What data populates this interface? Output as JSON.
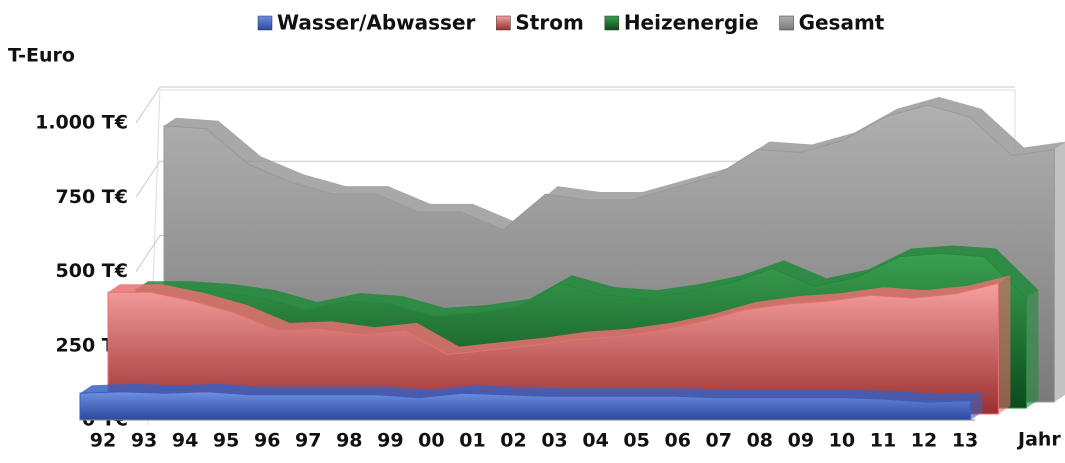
{
  "chart_data": {
    "type": "area3d",
    "y_label": "T-Euro",
    "x_label": "Jahr",
    "categories": [
      "92",
      "93",
      "94",
      "95",
      "96",
      "97",
      "98",
      "99",
      "00",
      "01",
      "02",
      "03",
      "04",
      "05",
      "06",
      "07",
      "08",
      "09",
      "10",
      "11",
      "12",
      "13"
    ],
    "series": [
      {
        "name": "Wasser/Abwasser",
        "color": "#3a5fc0",
        "values": [
          90,
          95,
          90,
          95,
          85,
          85,
          85,
          85,
          75,
          90,
          85,
          80,
          80,
          80,
          80,
          75,
          75,
          75,
          75,
          70,
          60,
          65
        ]
      },
      {
        "name": "Strom",
        "color": "#e87070",
        "values": [
          410,
          410,
          380,
          340,
          280,
          285,
          265,
          280,
          200,
          215,
          230,
          250,
          260,
          280,
          310,
          350,
          370,
          380,
          400,
          390,
          405,
          440
        ]
      },
      {
        "name": "Heizenergie",
        "color": "#1f8a3a",
        "values": [
          400,
          400,
          390,
          370,
          330,
          360,
          350,
          310,
          320,
          340,
          420,
          380,
          370,
          390,
          420,
          470,
          410,
          440,
          510,
          520,
          510,
          370
        ]
      },
      {
        "name": "Gesamt",
        "color": "#999999",
        "values": [
          930,
          920,
          800,
          740,
          700,
          700,
          640,
          640,
          580,
          700,
          680,
          680,
          720,
          760,
          850,
          840,
          880,
          960,
          1000,
          960,
          830,
          850
        ]
      }
    ],
    "ylim": [
      0,
      1000
    ],
    "yticks": [
      {
        "value": 0,
        "label": "0 T€"
      },
      {
        "value": 250,
        "label": "250 T€"
      },
      {
        "value": 500,
        "label": "500 T€"
      },
      {
        "value": 750,
        "label": "750 T€"
      },
      {
        "value": 1000,
        "label": "1.000 T€"
      }
    ],
    "grid": true
  }
}
